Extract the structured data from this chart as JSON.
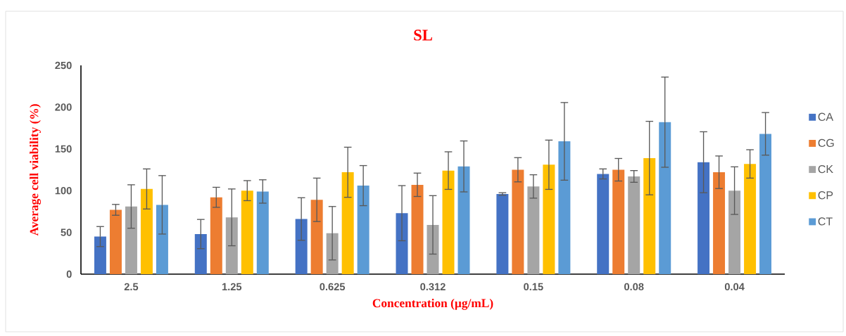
{
  "chart_data": {
    "type": "bar",
    "title": "SL",
    "xlabel": "Concentration (µg/mL)",
    "ylabel": "Average cell viability (%)",
    "categories": [
      "2.5",
      "1.25",
      "0.625",
      "0.312",
      "0.15",
      "0.08",
      "0.04"
    ],
    "series": [
      {
        "name": "CA",
        "color": "#4472c4",
        "values": [
          45,
          48,
          66,
          73,
          96,
          120,
          134
        ],
        "errors": [
          12,
          17.5,
          25.5,
          33,
          1.5,
          6,
          36.5
        ]
      },
      {
        "name": "CG",
        "color": "#ed7d31",
        "values": [
          77,
          92,
          89,
          107,
          125,
          125,
          122
        ],
        "errors": [
          6.5,
          12,
          26,
          14,
          14.5,
          13.5,
          19.5
        ]
      },
      {
        "name": "CK",
        "color": "#a5a5a5",
        "values": [
          81,
          68,
          49,
          59,
          105,
          117,
          100
        ],
        "errors": [
          26,
          34,
          32,
          35,
          14,
          7,
          28.5
        ]
      },
      {
        "name": "CP",
        "color": "#ffc000",
        "values": [
          102,
          100,
          122,
          124,
          131,
          139,
          132
        ],
        "errors": [
          24,
          12,
          30,
          22.5,
          29.5,
          44,
          17
        ]
      },
      {
        "name": "CT",
        "color": "#5b9bd5",
        "values": [
          83,
          99,
          106,
          129,
          159,
          182,
          168
        ],
        "errors": [
          35,
          14,
          24,
          30.5,
          46.5,
          54,
          25.5
        ]
      }
    ],
    "ylim": [
      0,
      250
    ],
    "yticks": [
      0,
      50,
      100,
      150,
      200,
      250
    ],
    "grid": false,
    "legend": "right"
  }
}
